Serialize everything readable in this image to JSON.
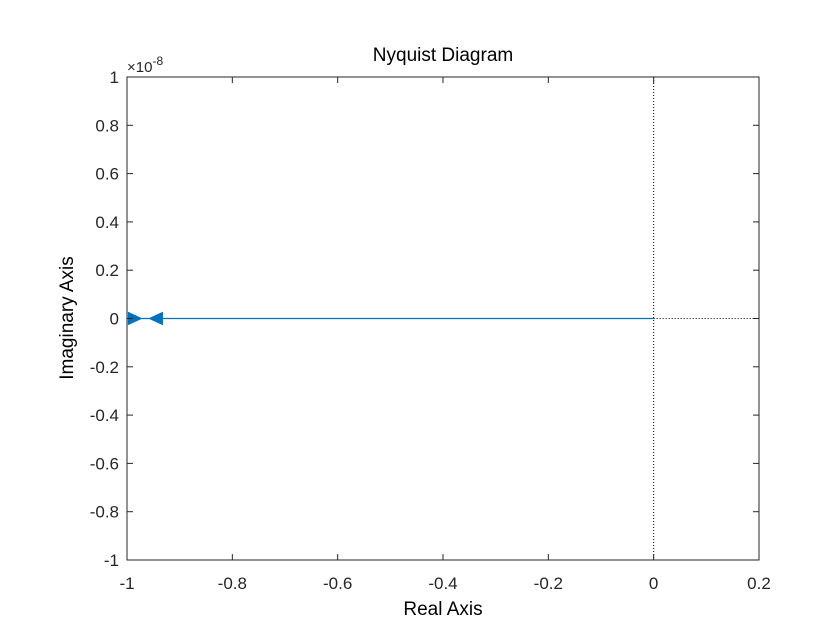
{
  "chart_data": {
    "type": "line",
    "title": "Nyquist Diagram",
    "xlabel": "Real Axis",
    "ylabel": "Imaginary Axis",
    "xlim": [
      -1,
      0.2
    ],
    "ylim": [
      -1,
      1
    ],
    "y_exponent_label": "×10",
    "y_exponent_power": "-8",
    "x_ticks": [
      -1,
      -0.8,
      -0.6,
      -0.4,
      -0.2,
      0,
      0.2
    ],
    "x_tick_labels": [
      "-1",
      "-0.8",
      "-0.6",
      "-0.4",
      "-0.2",
      "0",
      "0.2"
    ],
    "y_ticks": [
      -1,
      -0.8,
      -0.6,
      -0.4,
      -0.2,
      0,
      0.2,
      0.4,
      0.6,
      0.8,
      1
    ],
    "y_tick_labels": [
      "-1",
      "-0.8",
      "-0.6",
      "-0.4",
      "-0.2",
      "0",
      "0.2",
      "0.4",
      "0.6",
      "0.8",
      "1"
    ],
    "grid": false,
    "series": [
      {
        "x": [
          -1,
          0
        ],
        "y": [
          0,
          0
        ],
        "color": "#0072BD"
      }
    ],
    "arrows": [
      {
        "x": -0.985,
        "y": 0,
        "direction": "right"
      },
      {
        "x": -0.945,
        "y": 0,
        "direction": "left"
      }
    ],
    "reference_lines": [
      {
        "orientation": "vertical",
        "value": 0,
        "style": "dotted",
        "color": "#000000"
      },
      {
        "orientation": "horizontal",
        "value": 0,
        "from_x": 0,
        "to_x": 0.2,
        "style": "dotted",
        "color": "#000000"
      }
    ],
    "colors": {
      "series": "#0072BD",
      "axis": "#262626",
      "text": "#000000"
    }
  }
}
